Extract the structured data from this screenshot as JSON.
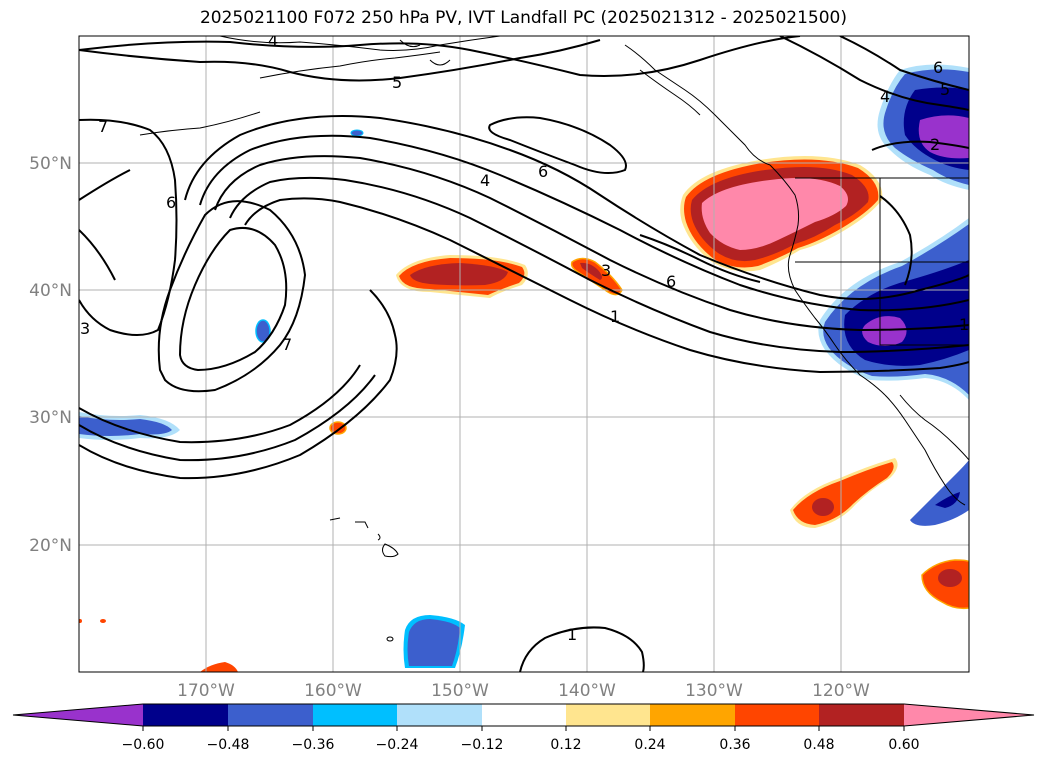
{
  "title": "2025021100 F072 250 hPa PV, IVT Landfall PC (2025021312 - 2025021500)",
  "lat_labels": [
    "50°N",
    "40°N",
    "30°N",
    "20°N"
  ],
  "lon_labels": [
    "170°W",
    "160°W",
    "150°W",
    "140°W",
    "130°W",
    "120°W"
  ],
  "colorbar": {
    "ticks": [
      "−0.60",
      "−0.48",
      "−0.36",
      "−0.24",
      "−0.12",
      "0.12",
      "0.24",
      "0.36",
      "0.48",
      "0.60"
    ],
    "colors": [
      "#9932cc",
      "#00008b",
      "#3c5fcd",
      "#00bfff",
      "#b0e0fa",
      "#ffffff",
      "#ffe58f",
      "#ffa500",
      "#ff4500",
      "#b22222",
      "#ff88aa"
    ]
  },
  "contour_labels": [
    "4",
    "5",
    "7",
    "6",
    "4",
    "6",
    "6",
    "3",
    "1",
    "1",
    "7",
    "3",
    "6",
    "4",
    "5",
    "2",
    "1"
  ]
}
